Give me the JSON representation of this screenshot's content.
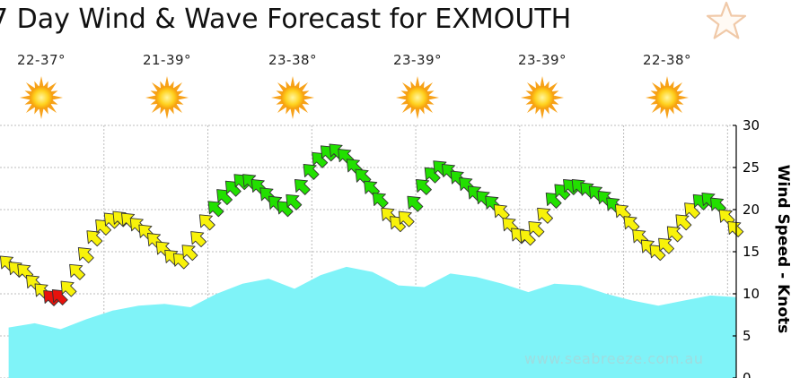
{
  "header": {
    "title": "7 Day Wind & Wave Forecast for EXMOUTH",
    "favorite_icon": "star-outline-icon"
  },
  "days": [
    {
      "temp": "22-37°",
      "icon": "sun-icon"
    },
    {
      "temp": "21-39°",
      "icon": "sun-icon"
    },
    {
      "temp": "23-38°",
      "icon": "sun-icon"
    },
    {
      "temp": "23-39°",
      "icon": "sun-icon"
    },
    {
      "temp": "23-39°",
      "icon": "sun-icon"
    },
    {
      "temp": "22-38°",
      "icon": "sun-icon"
    }
  ],
  "watermark": "www.seabreeze.com.au",
  "chart_data": {
    "type": "line",
    "ylabel": "Wind Speed - Knots",
    "ylim": [
      0,
      30
    ],
    "yticks": [
      "0",
      "5",
      "10",
      "15",
      "20",
      "25",
      "30"
    ],
    "grid": true,
    "colors": {
      "wave_fill": "#7ff3f8",
      "wind_green": "#22e000",
      "wind_yellow": "#f8f20a",
      "wind_red": "#e8120c",
      "grid": "#bdbdbd"
    },
    "wind_color_thresholds": {
      "red_below": 10,
      "yellow_below": 20
    },
    "series": [
      {
        "kind": "wind",
        "x": [
          0,
          2,
          4,
          6,
          8,
          10,
          12,
          14,
          16,
          18,
          20,
          22,
          24,
          26,
          28,
          30,
          32,
          34,
          36,
          38,
          40,
          42,
          44,
          46,
          48,
          50,
          52,
          54,
          56,
          58,
          60,
          62,
          64,
          66,
          68,
          70,
          72,
          74,
          76,
          78,
          80,
          82,
          84,
          86,
          88,
          90,
          92,
          94,
          96,
          98,
          100,
          102,
          104,
          106,
          108,
          110,
          112,
          114,
          116,
          118,
          120,
          122,
          124,
          126,
          128,
          130,
          132,
          134,
          136,
          138,
          140,
          142,
          144,
          146,
          148,
          150,
          152,
          154,
          156,
          158,
          160,
          162,
          164,
          166,
          168
        ],
        "values": [
          13.5,
          12.8,
          12.5,
          11.2,
          10.2,
          9.4,
          9.5,
          10.5,
          12.5,
          14.5,
          16.5,
          17.8,
          18.6,
          18.8,
          18.6,
          18.0,
          17.2,
          16.2,
          15.2,
          14.2,
          13.8,
          14.8,
          16.4,
          18.4,
          20.0,
          21.4,
          22.4,
          23.2,
          23.2,
          22.6,
          21.6,
          20.6,
          20.0,
          20.8,
          22.6,
          24.4,
          25.8,
          26.6,
          26.8,
          26.2,
          25.0,
          23.8,
          22.4,
          21.0,
          19.2,
          18.2,
          18.8,
          20.6,
          22.6,
          24.0,
          24.8,
          24.4,
          23.6,
          22.8,
          21.8,
          21.2,
          20.6,
          19.6,
          18.0,
          16.8,
          16.6,
          17.6,
          19.2,
          21.0,
          22.0,
          22.6,
          22.6,
          22.2,
          21.8,
          21.2,
          20.4,
          19.6,
          18.2,
          16.6,
          15.4,
          14.8,
          15.6,
          17.0,
          18.4,
          19.8,
          20.8,
          21.0,
          20.4,
          19.0,
          17.6
        ]
      },
      {
        "kind": "wave",
        "x": [
          0,
          6,
          12,
          18,
          24,
          30,
          36,
          42,
          48,
          54,
          60,
          66,
          72,
          78,
          84,
          90,
          96,
          102,
          108,
          114,
          120,
          126,
          132,
          138,
          144,
          150,
          156,
          162,
          168
        ],
        "values": [
          6.0,
          6.5,
          5.8,
          7.0,
          8.0,
          8.6,
          8.8,
          8.4,
          10.0,
          11.2,
          11.8,
          10.6,
          12.2,
          13.2,
          12.6,
          11.0,
          10.8,
          12.4,
          12.0,
          11.2,
          10.2,
          11.2,
          11.0,
          10.0,
          9.2,
          8.6,
          9.2,
          9.8,
          9.6
        ]
      }
    ]
  }
}
